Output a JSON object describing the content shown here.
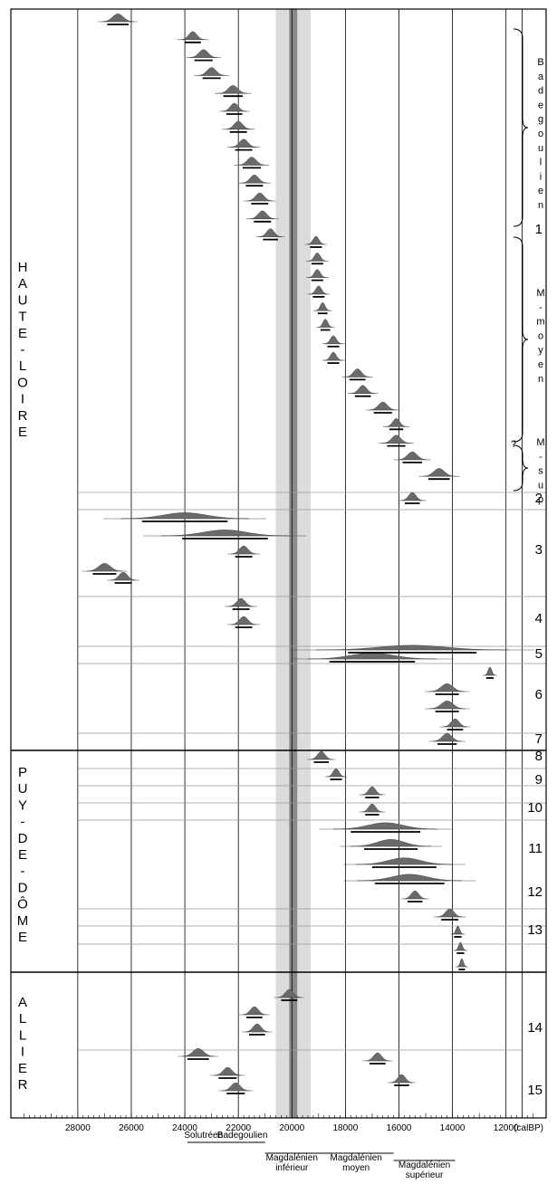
{
  "chart_data": {
    "type": "ridgeline-dates",
    "title": "",
    "xlabel": "(calBP)",
    "xlim": [
      30500,
      10500
    ],
    "x_ticks": [
      "28000",
      "26000",
      "24000",
      "22000",
      "20000",
      "18000",
      "16000",
      "14000",
      "12000"
    ],
    "axis_unit": "(calBP)",
    "gray_band": {
      "outer": [
        20600,
        19300
      ],
      "inner": [
        20100,
        19800
      ]
    },
    "regions": [
      {
        "name": "HAUTE-LOIRE",
        "letters": [
          "H",
          "A",
          "U",
          "T",
          "E",
          "-",
          "L",
          "O",
          "I",
          "R",
          "E"
        ]
      },
      {
        "name": "PUY-DE-DÔME",
        "letters": [
          "P",
          "U",
          "Y",
          "-",
          "D",
          "E",
          "-",
          "D",
          "Ô",
          "M",
          "E"
        ]
      },
      {
        "name": "ALLIER",
        "letters": [
          "A",
          "L",
          "L",
          "I",
          "E",
          "R"
        ]
      }
    ],
    "groups": [
      "1",
      "2",
      "3",
      "4",
      "5",
      "6",
      "7",
      "8",
      "9",
      "10",
      "11",
      "12",
      "13",
      "14",
      "15"
    ],
    "side_labels": [
      {
        "text": "Badegoulien",
        "letters": [
          "B",
          "a",
          "d",
          "e",
          "g",
          "o",
          "u",
          "l",
          "i",
          "e",
          "n"
        ]
      },
      {
        "text": "M-moyen",
        "letters": [
          "M",
          "-",
          "m",
          "o",
          "y",
          "e",
          "n"
        ]
      },
      {
        "text": "M-sup",
        "letters": [
          "M",
          "-",
          "s",
          "u",
          "p"
        ]
      },
      {
        "text": "?",
        "letters": [
          "?"
        ]
      }
    ],
    "periods": [
      {
        "label": "Solutréen",
        "lines": [
          "Solutréen"
        ],
        "range": [
          23900,
          22700
        ]
      },
      {
        "label": "Badegoulien",
        "lines": [
          "Badegoulien"
        ],
        "range": [
          22700,
          21000
        ]
      },
      {
        "label": "Magdalénien inférieur",
        "lines": [
          "Magdalénien",
          "inférieur"
        ],
        "range": [
          21000,
          19000
        ]
      },
      {
        "label": "Magdalénien moyen",
        "lines": [
          "Magdalénien",
          "moyen"
        ],
        "range": [
          19000,
          16200
        ]
      },
      {
        "label": "Magdalénien supérieur",
        "lines": [
          "Magdalénien",
          "supérieur"
        ],
        "range": [
          16200,
          13900
        ]
      }
    ],
    "dates": [
      {
        "g": 1,
        "m": 26500,
        "sd": 200
      },
      {
        "g": 1,
        "m": 23700,
        "sd": 150
      },
      {
        "g": 1,
        "m": 23300,
        "sd": 170
      },
      {
        "g": 1,
        "m": 23000,
        "sd": 170
      },
      {
        "g": 1,
        "m": 22200,
        "sd": 180
      },
      {
        "g": 1,
        "m": 22150,
        "sd": 150
      },
      {
        "g": 1,
        "m": 22000,
        "sd": 160
      },
      {
        "g": 1,
        "m": 21800,
        "sd": 160
      },
      {
        "g": 1,
        "m": 21500,
        "sd": 170
      },
      {
        "g": 1,
        "m": 21400,
        "sd": 160
      },
      {
        "g": 1,
        "m": 21200,
        "sd": 160
      },
      {
        "g": 1,
        "m": 21100,
        "sd": 160
      },
      {
        "g": 1,
        "m": 20800,
        "sd": 140
      },
      {
        "g": 1,
        "m": 19100,
        "sd": 110
      },
      {
        "g": 1,
        "m": 19050,
        "sd": 110
      },
      {
        "g": 1,
        "m": 19050,
        "sd": 110
      },
      {
        "g": 1,
        "m": 19000,
        "sd": 110
      },
      {
        "g": 1,
        "m": 18850,
        "sd": 90
      },
      {
        "g": 1,
        "m": 18750,
        "sd": 90
      },
      {
        "g": 1,
        "m": 18450,
        "sd": 110
      },
      {
        "g": 1,
        "m": 18450,
        "sd": 110
      },
      {
        "g": 1,
        "m": 17550,
        "sd": 150
      },
      {
        "g": 1,
        "m": 17350,
        "sd": 150
      },
      {
        "g": 1,
        "m": 16600,
        "sd": 170
      },
      {
        "g": 1,
        "m": 16100,
        "sd": 130
      },
      {
        "g": 1,
        "m": 16100,
        "sd": 170
      },
      {
        "g": 1,
        "m": 15500,
        "sd": 180
      },
      {
        "g": 1,
        "m": 14500,
        "sd": 200
      },
      {
        "g": 2,
        "m": 15500,
        "sd": 140
      },
      {
        "g": 3,
        "m": 24000,
        "sd": 800
      },
      {
        "g": 3,
        "m": 22500,
        "sd": 800
      },
      {
        "g": 3,
        "m": 21800,
        "sd": 160
      },
      {
        "g": 3,
        "m": 27000,
        "sd": 220
      },
      {
        "g": 3,
        "m": 26300,
        "sd": 160
      },
      {
        "g": 4,
        "m": 21900,
        "sd": 160
      },
      {
        "g": 4,
        "m": 21800,
        "sd": 160
      },
      {
        "g": 4,
        "m": 17000,
        "sd": 800
      },
      {
        "g": 5,
        "m": 15500,
        "sd": 1200
      },
      {
        "g": 5,
        "m": 12600,
        "sd": 70
      },
      {
        "g": 6,
        "m": 14200,
        "sd": 220
      },
      {
        "g": 6,
        "m": 14200,
        "sd": 220
      },
      {
        "g": 6,
        "m": 13900,
        "sd": 150
      },
      {
        "g": 7,
        "m": 14200,
        "sd": 180
      },
      {
        "g": 8,
        "m": 18900,
        "sd": 140
      },
      {
        "g": 9,
        "m": 18350,
        "sd": 110
      },
      {
        "g": 9,
        "m": 17000,
        "sd": 130
      },
      {
        "g": 10,
        "m": 17000,
        "sd": 130
      },
      {
        "g": 10,
        "m": 16500,
        "sd": 650
      },
      {
        "g": 11,
        "m": 16300,
        "sd": 500
      },
      {
        "g": 11,
        "m": 15800,
        "sd": 600
      },
      {
        "g": 11,
        "m": 15600,
        "sd": 650
      },
      {
        "g": 12,
        "m": 15400,
        "sd": 140
      },
      {
        "g": 12,
        "m": 14100,
        "sd": 160
      },
      {
        "g": 13,
        "m": 13800,
        "sd": 70
      },
      {
        "g": 13,
        "m": 13700,
        "sd": 70
      },
      {
        "g": 13,
        "m": 13650,
        "sd": 60
      },
      {
        "g": 14,
        "m": 20100,
        "sd": 150
      },
      {
        "g": 14,
        "m": 21400,
        "sd": 150
      },
      {
        "g": 14,
        "m": 21300,
        "sd": 150
      },
      {
        "g": 15,
        "m": 23500,
        "sd": 200
      },
      {
        "g": 15,
        "m": 22400,
        "sd": 170
      },
      {
        "g": 15,
        "m": 22100,
        "sd": 170
      },
      {
        "g": 15,
        "m": 16800,
        "sd": 150
      },
      {
        "g": 15,
        "m": 15900,
        "sd": 140
      }
    ]
  }
}
